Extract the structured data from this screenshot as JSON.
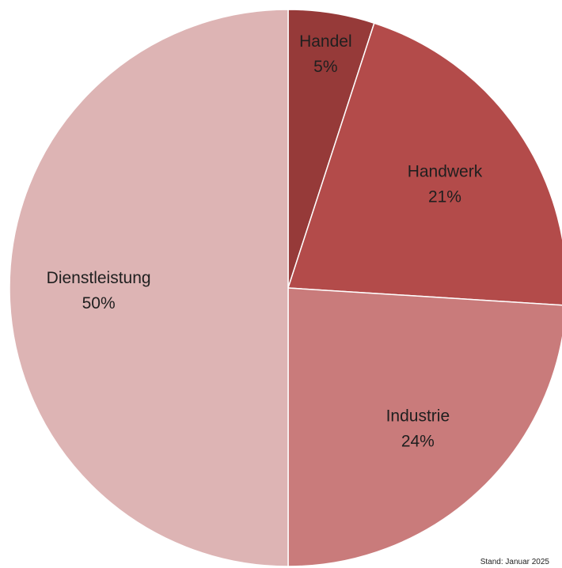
{
  "chart_data": {
    "type": "pie",
    "title": "",
    "start_angle_deg": 0,
    "direction": "clockwise",
    "legend": "none",
    "slices": [
      {
        "label": "Handel",
        "value": 5,
        "value_label": "5%",
        "color": "#963a39"
      },
      {
        "label": "Handwerk",
        "value": 21,
        "value_label": "21%",
        "color": "#b34b4a"
      },
      {
        "label": "Industrie",
        "value": 24,
        "value_label": "24%",
        "color": "#c97b7b"
      },
      {
        "label": "Dienstleistung",
        "value": 50,
        "value_label": "50%",
        "color": "#ddb4b4"
      }
    ]
  },
  "footnote": "Stand: Januar 2025",
  "colors": {
    "background": "#ffffff",
    "slice_border": "#ffffff",
    "label_text": "#1f1f1f"
  }
}
